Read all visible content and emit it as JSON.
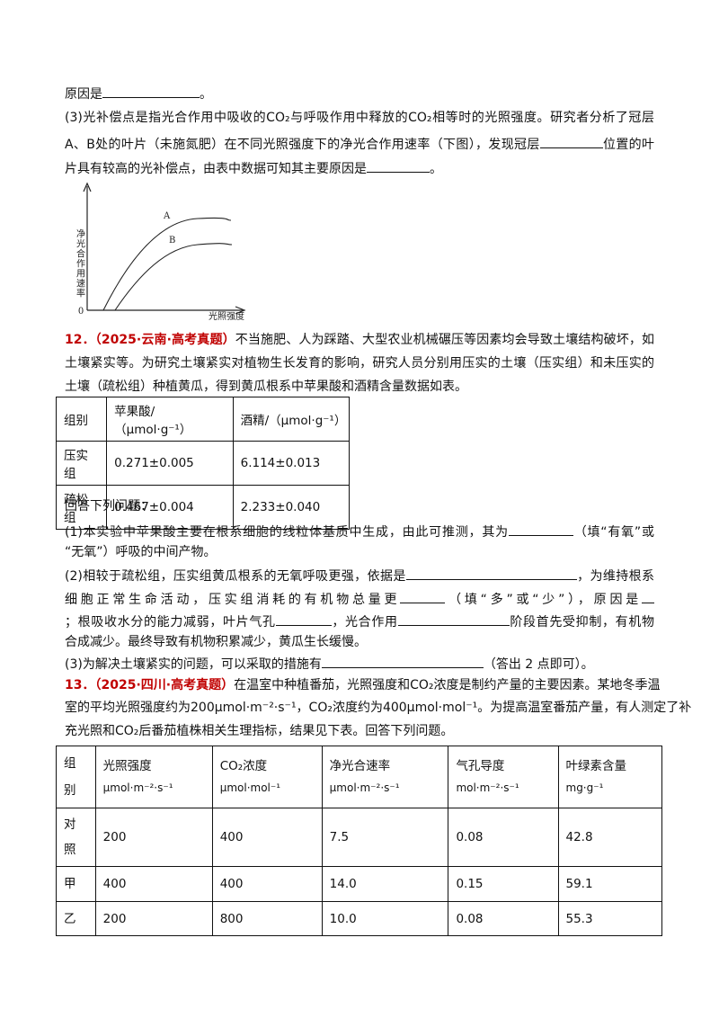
{
  "intro": {
    "lines": [
      [
        "原因是",
        "。"
      ],
      [
        "(3)光补偿点是指光合作用中吸收的CO₂与呼吸作用中释放的CO₂相等时的光照强度。研究者分析了冠层"
      ],
      [
        "A、B处的叶片（未施氮肥）在不同光照强度下的净光合作用速率（下图），发现冠层",
        "位置的叶"
      ],
      [
        "片具有较高的光补偿点，由表中数据可知其主要原因是",
        "。"
      ]
    ],
    "figure": {
      "y_label": "净光合作用速率",
      "x_label": "光照强度",
      "origin": "0",
      "curves": [
        "A",
        "B"
      ]
    }
  },
  "q12": {
    "number": "12．",
    "source": "（2025·云南·高考真题）",
    "lines": [
      [
        "不当施肥、人为踩踏、大型农业机械碾压等因素均会导致土壤结构破坏，如"
      ],
      [
        "土壤紧实等。为研究土壤紧实对植物生长发育的影响，研究人员分别用压实的土壤（压实组）和未压实的"
      ],
      [
        "土壤（疏松组）种植黄瓜，得到黄瓜根系中苹果酸和酒精含量数据如表。"
      ]
    ],
    "table": {
      "header": [
        "组别",
        "苹果酸/（μmol·g⁻¹）",
        "酒精/（μmol·g⁻¹）"
      ],
      "rows": [
        [
          "压实组",
          "0.271±0.005",
          "6.114±0.013"
        ],
        [
          "疏松组",
          "0.467±0.004",
          "2.233±0.040"
        ]
      ]
    },
    "answers": [
      [
        "回答下列问题："
      ],
      [
        "(1)本实验中苹果酸主要在根系细胞的线粒体基质中生成，由此可推测，其为",
        "（填“有氧”或"
      ],
      [
        "“无氧”）呼吸的中间产物。"
      ],
      [
        "(2)相较于疏松组，压实组黄瓜根系的无氧呼吸更强，依据是",
        "，为维持根系"
      ],
      [
        "细胞正常生命活动，压实组消耗的有机物总量更",
        "（填“多”或“少”），原因是"
      ],
      [
        "；根吸收水分的能力减弱，叶片气孔",
        "，光合作用",
        "阶段首先受抑制，有机物"
      ],
      [
        "合成减少。最终导致有机物积累减少，黄瓜生长缓慢。"
      ],
      [
        "(3)为解决土壤紧实的问题，可以采取的措施有",
        "（答出 2 点即可）。"
      ]
    ]
  },
  "q13": {
    "number": "13．",
    "source": "（2025·四川·高考真题）",
    "lines": [
      [
        "在温室中种植番茄，光照强度和CO₂浓度是制约产量的主要因素。某地冬季温"
      ],
      [
        "室的平均光照强度约为200μmol·m⁻²·s⁻¹，CO₂浓度约为400μmol·mol⁻¹。为提高温室番茄产量，有人测定了补"
      ],
      [
        "充光照和CO₂后番茄植株相关生理指标，结果见下表。回答下列问题。"
      ]
    ],
    "table": {
      "header": [
        [
          "组别"
        ],
        [
          "光照强度",
          "μmol·m⁻²·s⁻¹"
        ],
        [
          "CO₂浓度",
          "μmol·mol⁻¹"
        ],
        [
          "净光合速率",
          "μmol·m⁻²·s⁻¹"
        ],
        [
          "气孔导度",
          "mol·m⁻²·s⁻¹"
        ],
        [
          "叶绿素含量",
          "mg·g⁻¹"
        ]
      ],
      "rows": [
        [
          "对照",
          "200",
          "400",
          "7.5",
          "0.08",
          "42.8"
        ],
        [
          "甲",
          "400",
          "400",
          "14.0",
          "0.15",
          "59.1"
        ],
        [
          "乙",
          "200",
          "800",
          "10.0",
          "0.08",
          "55.3"
        ]
      ]
    }
  }
}
